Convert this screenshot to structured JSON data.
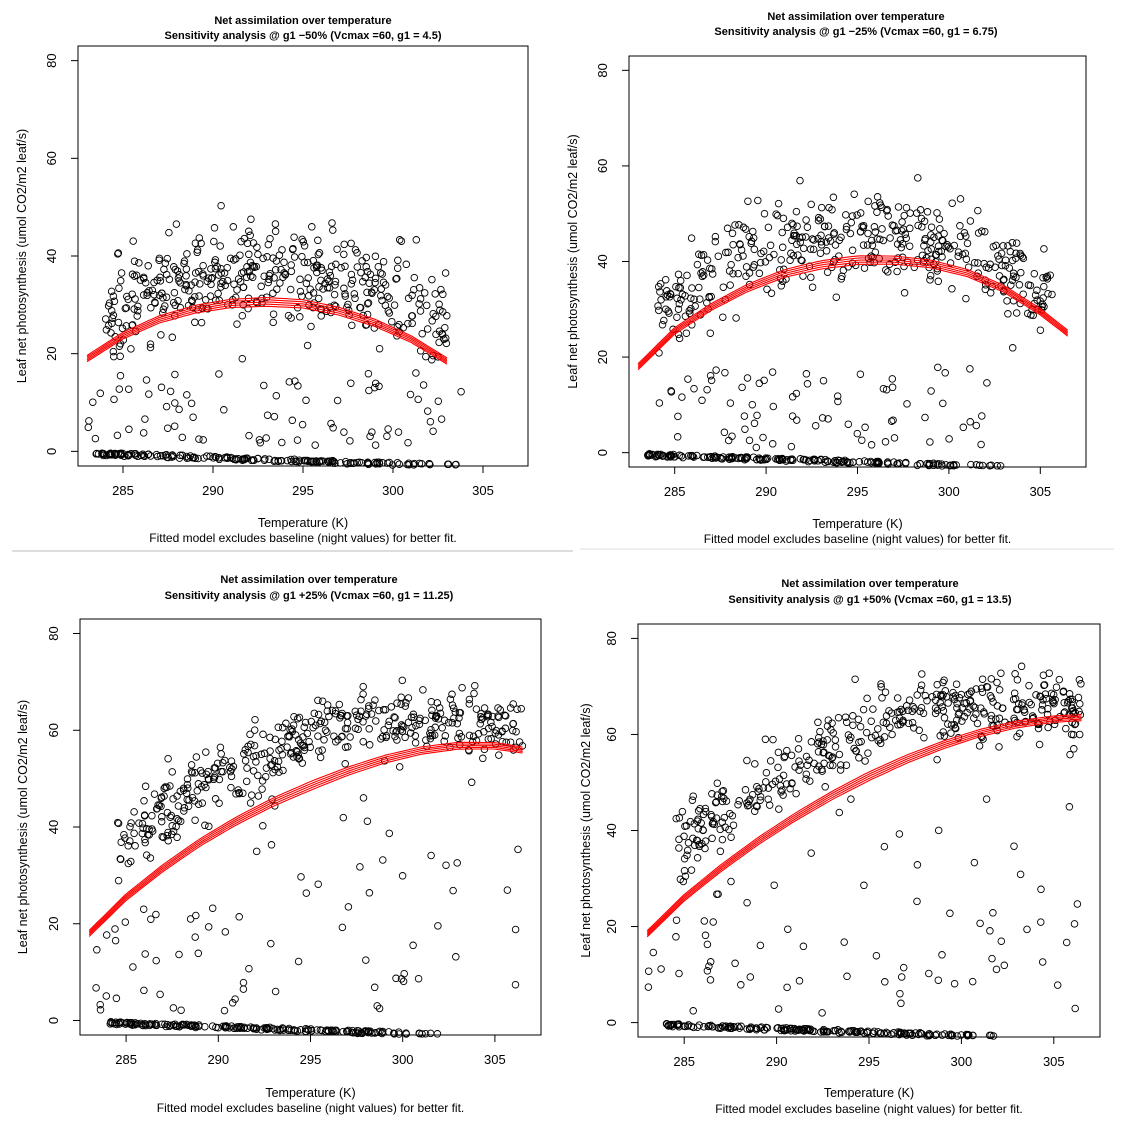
{
  "figure": {
    "colors": {
      "points": "#000000",
      "fit": "#ff0000",
      "divider": "#cccccc",
      "frame": "#000000"
    }
  },
  "chart_data": [
    {
      "type": "scatter",
      "title": "Net assimilation over temperature",
      "subtitle": "Sensitivity analysis @ g1 −50% (Vcmax =60, g1 = 4.5)",
      "xlabel": "Temperature (K)",
      "ylabel": "Leaf net photosynthesis (umol CO2/m2 leaf/s)",
      "caption": "Fitted model excludes baseline (night values) for better fit.",
      "xlim": [
        282.5,
        307.5
      ],
      "ylim": [
        -3,
        83
      ],
      "xticks": [
        285,
        290,
        295,
        300,
        305
      ],
      "yticks": [
        0,
        20,
        40,
        60,
        80
      ],
      "grid": false,
      "legend": "none",
      "fit": {
        "x": [
          283.0,
          285.0,
          287.0,
          289.0,
          291.0,
          293.0,
          295.0,
          297.0,
          299.0,
          301.0,
          303.0
        ],
        "y": [
          19.0,
          23.7,
          27.0,
          29.1,
          30.3,
          30.6,
          30.2,
          28.7,
          26.3,
          23.0,
          18.5
        ]
      },
      "day_band": {
        "xmin": 284.0,
        "xmax": 303.0,
        "center": 293.0,
        "peak": 36.0,
        "edge": 27.0,
        "spread": 5.0
      },
      "low_scatter": {
        "xmin": 283.0,
        "xmax": 304.0,
        "ymin": 1.0,
        "ymax": 16.0
      },
      "night_band": {
        "xmin": 283.5,
        "xmax": 303.5,
        "y_start": -0.5,
        "y_end": -3.0
      }
    },
    {
      "type": "scatter",
      "title": "Net assimilation over temperature",
      "subtitle": "Sensitivity analysis @ g1 −25% (Vcmax =60, g1 = 6.75)",
      "xlabel": "Temperature (K)",
      "ylabel": "Leaf net photosynthesis (umol CO2/m2 leaf/s)",
      "caption": "Fitted model excludes baseline (night values) for better fit.",
      "xlim": [
        282.5,
        307.5
      ],
      "ylim": [
        -3,
        83
      ],
      "xticks": [
        285,
        290,
        295,
        300,
        305
      ],
      "yticks": [
        0,
        20,
        40,
        60,
        80
      ],
      "grid": false,
      "legend": "none",
      "fit": {
        "x": [
          283.0,
          285.0,
          287.0,
          289.0,
          291.0,
          293.0,
          295.0,
          297.0,
          299.0,
          301.0,
          303.0,
          305.0,
          306.5
        ],
        "y": [
          18.0,
          25.5,
          30.5,
          34.5,
          37.5,
          39.3,
          40.3,
          40.3,
          39.5,
          37.6,
          34.3,
          29.5,
          25.0
        ]
      },
      "day_band": {
        "xmin": 284.0,
        "xmax": 306.0,
        "center": 295.5,
        "peak": 45.0,
        "edge": 30.0,
        "spread": 5.0
      },
      "low_scatter": {
        "xmin": 283.0,
        "xmax": 303.0,
        "ymin": 1.0,
        "ymax": 18.0
      },
      "night_band": {
        "xmin": 283.5,
        "xmax": 303.0,
        "y_start": -0.5,
        "y_end": -3.0
      }
    },
    {
      "type": "scatter",
      "title": "Net assimilation over temperature",
      "subtitle": "Sensitivity analysis @ g1 +25% (Vcmax =60, g1 = 11.25)",
      "xlabel": "Temperature (K)",
      "ylabel": "Leaf net photosynthesis (umol CO2/m2 leaf/s)",
      "caption": "Fitted model excludes baseline (night values) for better fit.",
      "xlim": [
        282.5,
        307.5
      ],
      "ylim": [
        -3,
        83
      ],
      "xticks": [
        285,
        290,
        295,
        300,
        305
      ],
      "yticks": [
        0,
        20,
        40,
        60,
        80
      ],
      "grid": false,
      "legend": "none",
      "fit": {
        "x": [
          283.0,
          285.0,
          287.0,
          289.0,
          291.0,
          293.0,
          295.0,
          297.0,
          299.0,
          301.0,
          303.0,
          305.0,
          306.5
        ],
        "y": [
          18.0,
          25.5,
          31.5,
          36.8,
          41.3,
          45.2,
          48.5,
          51.5,
          54.0,
          55.8,
          56.8,
          56.8,
          55.9
        ]
      },
      "day_band": {
        "xmin": 284.5,
        "xmax": 306.5,
        "x0": 285.0,
        "x1": 300.0,
        "y0": 38.0,
        "y1": 62.0,
        "spread": 3.5
      },
      "low_scatter": {
        "xmin": 283.0,
        "xmax": 306.5,
        "ymin": 2.0,
        "ymax": 50.0
      },
      "night_band": {
        "xmin": 284.0,
        "xmax": 302.0,
        "y_start": -0.5,
        "y_end": -3.0
      }
    },
    {
      "type": "scatter",
      "title": "Net assimilation over temperature",
      "subtitle": "Sensitivity analysis @ g1 +50% (Vcmax =60, g1 = 13.5)",
      "xlabel": "Temperature (K)",
      "ylabel": "Leaf net photosynthesis (umol CO2/m2 leaf/s)",
      "caption": "Fitted model excludes baseline (night values) for better fit.",
      "xlim": [
        282.5,
        307.5
      ],
      "ylim": [
        -3,
        83
      ],
      "xticks": [
        285,
        290,
        295,
        300,
        305
      ],
      "yticks": [
        0,
        20,
        40,
        60,
        80
      ],
      "grid": false,
      "legend": "none",
      "fit": {
        "x": [
          283.0,
          285.0,
          287.0,
          289.0,
          291.0,
          293.0,
          295.0,
          297.0,
          299.0,
          301.0,
          303.0,
          305.0,
          306.5
        ],
        "y": [
          18.5,
          26.0,
          32.2,
          37.8,
          42.8,
          47.3,
          51.3,
          54.8,
          57.8,
          60.3,
          62.1,
          63.2,
          63.5
        ]
      },
      "day_band": {
        "xmin": 284.5,
        "xmax": 306.5,
        "x0": 285.0,
        "x1": 301.0,
        "y0": 38.0,
        "y1": 66.0,
        "spread": 3.5
      },
      "low_scatter": {
        "xmin": 283.0,
        "xmax": 306.5,
        "ymin": 2.0,
        "ymax": 50.0
      },
      "night_band": {
        "xmin": 284.0,
        "xmax": 302.0,
        "y_start": -0.5,
        "y_end": -3.0
      }
    }
  ]
}
